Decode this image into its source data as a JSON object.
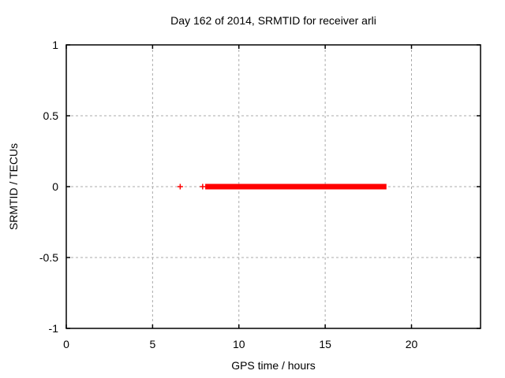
{
  "chart_data": {
    "type": "scatter",
    "title": "Day 162 of 2014, SRMTID for receiver arli",
    "xlabel": "GPS time / hours",
    "ylabel": "SRMTID / TECUs",
    "xlim": [
      0,
      24
    ],
    "ylim": [
      -1,
      1
    ],
    "xticks": [
      0,
      5,
      10,
      15,
      20
    ],
    "xtick_labels": [
      "0",
      "5",
      "10",
      "15",
      "20"
    ],
    "yticks": [
      1,
      0.5,
      0,
      -0.5,
      -1
    ],
    "ytick_labels": [
      "1",
      "0.5",
      "0",
      "-0.5",
      "-1"
    ],
    "grid": true,
    "grid_style": "dashed",
    "legend": "none",
    "marker": "plus",
    "colors": {
      "background": "#ffffff",
      "border": "#000000",
      "grid": "#ababab",
      "text": "#000000",
      "series": "#ff0000"
    },
    "series": [
      {
        "name": "SRMTID",
        "color": "#ff0000",
        "isolated_points": [
          {
            "x": 6.6,
            "y": 0
          },
          {
            "x": 7.9,
            "y": 0
          }
        ],
        "dense_runs": [
          {
            "x_start": 8.05,
            "x_end": 18.55,
            "y": 0
          }
        ]
      }
    ]
  }
}
